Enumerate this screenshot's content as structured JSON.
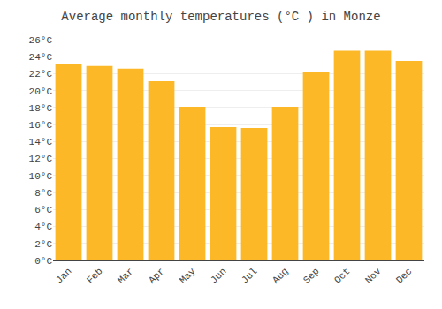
{
  "chart_data": {
    "type": "bar",
    "title": "Average monthly temperatures (°C ) in Monze",
    "categories": [
      "Jan",
      "Feb",
      "Mar",
      "Apr",
      "May",
      "Jun",
      "Jul",
      "Aug",
      "Sep",
      "Oct",
      "Nov",
      "Dec"
    ],
    "values": [
      23.2,
      22.9,
      22.6,
      21.1,
      18.1,
      15.7,
      15.6,
      18.1,
      22.2,
      24.7,
      24.7,
      23.5
    ],
    "color": "#FDB827",
    "ylim": [
      0,
      26
    ],
    "yticks": [
      {
        "value": 0,
        "label": "0°C"
      },
      {
        "value": 2,
        "label": "2°C"
      },
      {
        "value": 4,
        "label": "4°C"
      },
      {
        "value": 6,
        "label": "6°C"
      },
      {
        "value": 8,
        "label": "8°C"
      },
      {
        "value": 10,
        "label": "10°C"
      },
      {
        "value": 12,
        "label": "12°C"
      },
      {
        "value": 14,
        "label": "14°C"
      },
      {
        "value": 16,
        "label": "16°C"
      },
      {
        "value": 18,
        "label": "18°C"
      },
      {
        "value": 20,
        "label": "20°C"
      },
      {
        "value": 22,
        "label": "22°C"
      },
      {
        "value": 24,
        "label": "24°C"
      },
      {
        "value": 26,
        "label": "26°C"
      }
    ],
    "grid": true
  }
}
